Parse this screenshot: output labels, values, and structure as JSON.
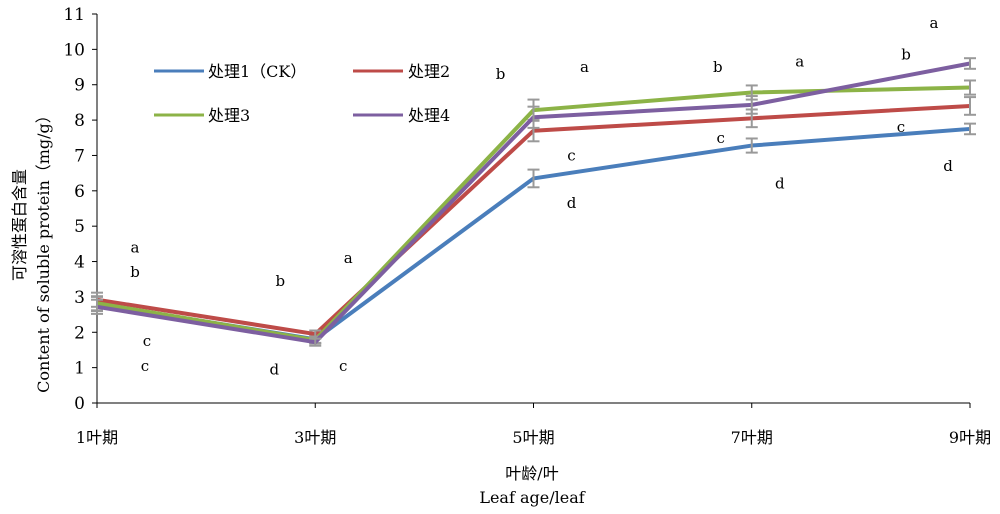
{
  "chart_data": {
    "type": "line",
    "categories": [
      "1叶期",
      "3叶期",
      "5叶期",
      "7叶期",
      "9叶期"
    ],
    "xlabel_cn": "叶龄/叶",
    "xlabel_en": "Leaf age/leaf",
    "ylabel_cn": "可溶性蛋白含量",
    "ylabel_en": "Content of soluble protein（mg/g）",
    "ylim": [
      0,
      11
    ],
    "yticks": [
      0,
      1,
      2,
      3,
      4,
      5,
      6,
      7,
      8,
      9,
      10,
      11
    ],
    "grid": false,
    "legend_position": "top-left",
    "series": [
      {
        "name": "处理1（CK）",
        "color": "#4A7EBB",
        "values": [
          2.8,
          1.8,
          6.35,
          7.28,
          7.75
        ],
        "errors": [
          0.2,
          0.1,
          0.25,
          0.2,
          0.15
        ]
      },
      {
        "name": "处理2",
        "color": "#BE4B48",
        "values": [
          2.92,
          1.95,
          7.7,
          8.05,
          8.4
        ],
        "errors": [
          0.2,
          0.1,
          0.3,
          0.25,
          0.25
        ]
      },
      {
        "name": "处理3",
        "color": "#8CB347",
        "values": [
          2.82,
          1.78,
          8.28,
          8.78,
          8.92
        ],
        "errors": [
          0.2,
          0.1,
          0.3,
          0.2,
          0.2
        ]
      },
      {
        "name": "处理4",
        "color": "#7D5FA0",
        "values": [
          2.72,
          1.72,
          8.08,
          8.43,
          9.6
        ],
        "errors": [
          0.2,
          0.1,
          0.3,
          0.25,
          0.15
        ]
      }
    ],
    "annotations": [
      {
        "text": "a",
        "x": "1叶期",
        "y": 4.4,
        "dx": 38
      },
      {
        "text": "b",
        "x": "1叶期",
        "y": 3.7,
        "dx": 38
      },
      {
        "text": "c",
        "x": "1叶期",
        "y": 1.75,
        "dx": 50
      },
      {
        "text": "c",
        "x": "1叶期",
        "y": 1.05,
        "dx": 48
      },
      {
        "text": "b",
        "x": "3叶期",
        "y": 3.45,
        "dx": -35
      },
      {
        "text": "a",
        "x": "3叶期",
        "y": 4.1,
        "dx": 33
      },
      {
        "text": "d",
        "x": "3叶期",
        "y": 0.95,
        "dx": -41
      },
      {
        "text": "c",
        "x": "3叶期",
        "y": 1.05,
        "dx": 28
      },
      {
        "text": "b",
        "x": "5叶期",
        "y": 9.3,
        "dx": -33
      },
      {
        "text": "a",
        "x": "5叶期",
        "y": 9.5,
        "dx": 51
      },
      {
        "text": "c",
        "x": "5叶期",
        "y": 7.0,
        "dx": 38
      },
      {
        "text": "d",
        "x": "5叶期",
        "y": 5.65,
        "dx": 38
      },
      {
        "text": "b",
        "x": "7叶期",
        "y": 9.5,
        "dx": -34
      },
      {
        "text": "a",
        "x": "7叶期",
        "y": 9.65,
        "dx": 48
      },
      {
        "text": "c",
        "x": "7叶期",
        "y": 7.5,
        "dx": -31
      },
      {
        "text": "d",
        "x": "7叶期",
        "y": 6.2,
        "dx": 28
      },
      {
        "text": "a",
        "x": "9叶期",
        "y": 10.75,
        "dx": -36
      },
      {
        "text": "b",
        "x": "9叶期",
        "y": 9.85,
        "dx": -64
      },
      {
        "text": "c",
        "x": "9叶期",
        "y": 7.8,
        "dx": -69
      },
      {
        "text": "d",
        "x": "9叶期",
        "y": 6.7,
        "dx": -22
      }
    ]
  }
}
